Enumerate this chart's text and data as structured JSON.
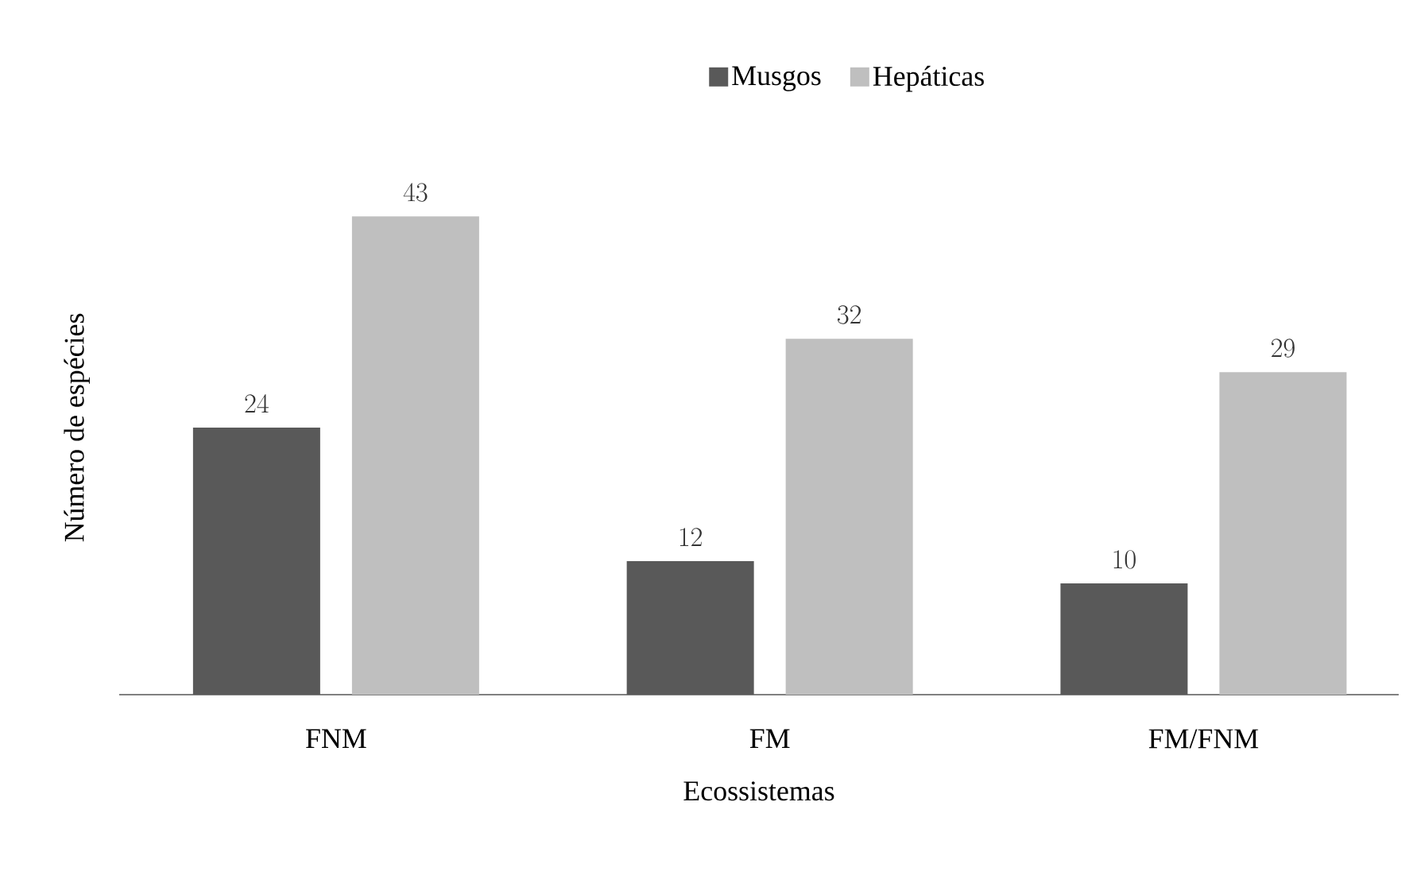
{
  "chart_data": {
    "type": "bar",
    "xlabel": "Ecossistemas",
    "ylabel": "Número de espécies",
    "categories": [
      "FNM",
      "FM",
      "FM/FNM"
    ],
    "series": [
      {
        "name": "Musgos",
        "color": "#595959",
        "values": [
          24,
          12,
          10
        ]
      },
      {
        "name": "Hepáticas",
        "color": "#bfbfbf",
        "values": [
          43,
          32,
          29
        ]
      }
    ],
    "data_labels": true,
    "legend": "top"
  }
}
